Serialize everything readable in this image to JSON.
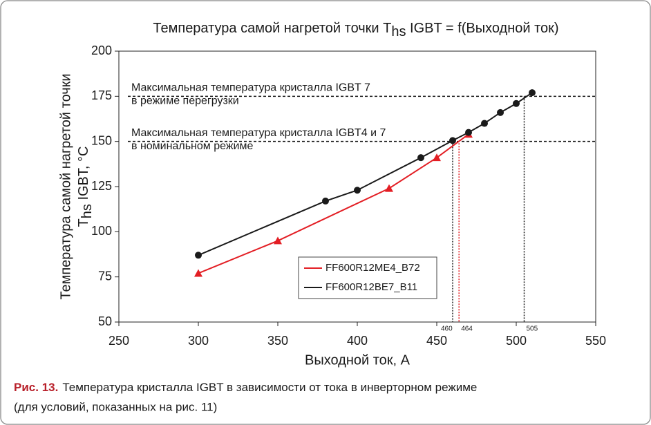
{
  "chart_data": {
    "type": "line",
    "title": [
      "Температура самой нагретой точки T",
      "hs",
      " IGBT = f(Выходной ток)"
    ],
    "ylabel": [
      "Температура самой нагретой точки",
      "T",
      "hs",
      " IGBT, °C"
    ],
    "xlabel": "Выходной ток, А",
    "xlim": [
      250,
      550
    ],
    "xticks": [
      250,
      300,
      350,
      400,
      450,
      500,
      550
    ],
    "ylim": [
      50,
      200
    ],
    "yticks": [
      50,
      75,
      100,
      125,
      150,
      175,
      200
    ],
    "series": [
      {
        "name": "FF600R12ME4_B72",
        "color": "#e31e24",
        "marker": "triangle",
        "x": [
          300,
          350,
          420,
          450,
          470
        ],
        "values": [
          77,
          95,
          124,
          141,
          154
        ]
      },
      {
        "name": "FF600R12BE7_B11",
        "color": "#1a1a1a",
        "marker": "circle",
        "x": [
          300,
          380,
          400,
          440,
          460,
          470,
          480,
          490,
          500,
          510
        ],
        "values": [
          87,
          117,
          123,
          141,
          150.5,
          155,
          160,
          166,
          171,
          177
        ]
      }
    ],
    "hlines": [
      {
        "y": 175,
        "label": [
          "Максимальная температура кристалла IGBT 7",
          "в режиме перегрузки"
        ]
      },
      {
        "y": 150,
        "label": [
          "Максимальная температура кристалла IGBT4 и 7",
          "в номинальном режиме"
        ]
      }
    ],
    "vlines": [
      {
        "x": 460,
        "y": 150,
        "color": "#1a1a1a"
      },
      {
        "x": 464,
        "y": 149,
        "color": "#e31e24"
      },
      {
        "x": 505,
        "y": 175,
        "color": "#1a1a1a"
      }
    ]
  },
  "caption": {
    "label": "Рис. 13.",
    "lines": [
      "Температура кристалла IGBT в зависимости от тока в инверторном режиме",
      "(для условий, показанных на рис. 11)"
    ]
  }
}
